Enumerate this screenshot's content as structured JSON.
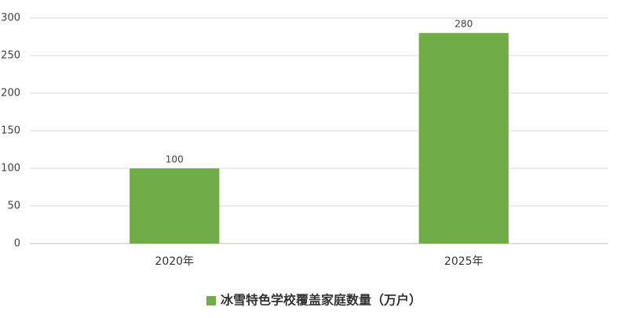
{
  "chart_data": {
    "type": "bar",
    "categories": [
      "2020年",
      "2025年"
    ],
    "series": [
      {
        "name": "冰雪特色学校覆盖家庭数量（万户）",
        "color": "#70ad47",
        "values": [
          100,
          280
        ]
      }
    ],
    "ylim": [
      0,
      300
    ],
    "yticks": [
      0,
      50,
      100,
      150,
      200,
      250,
      300
    ],
    "grid": true,
    "legend": "bottom"
  }
}
